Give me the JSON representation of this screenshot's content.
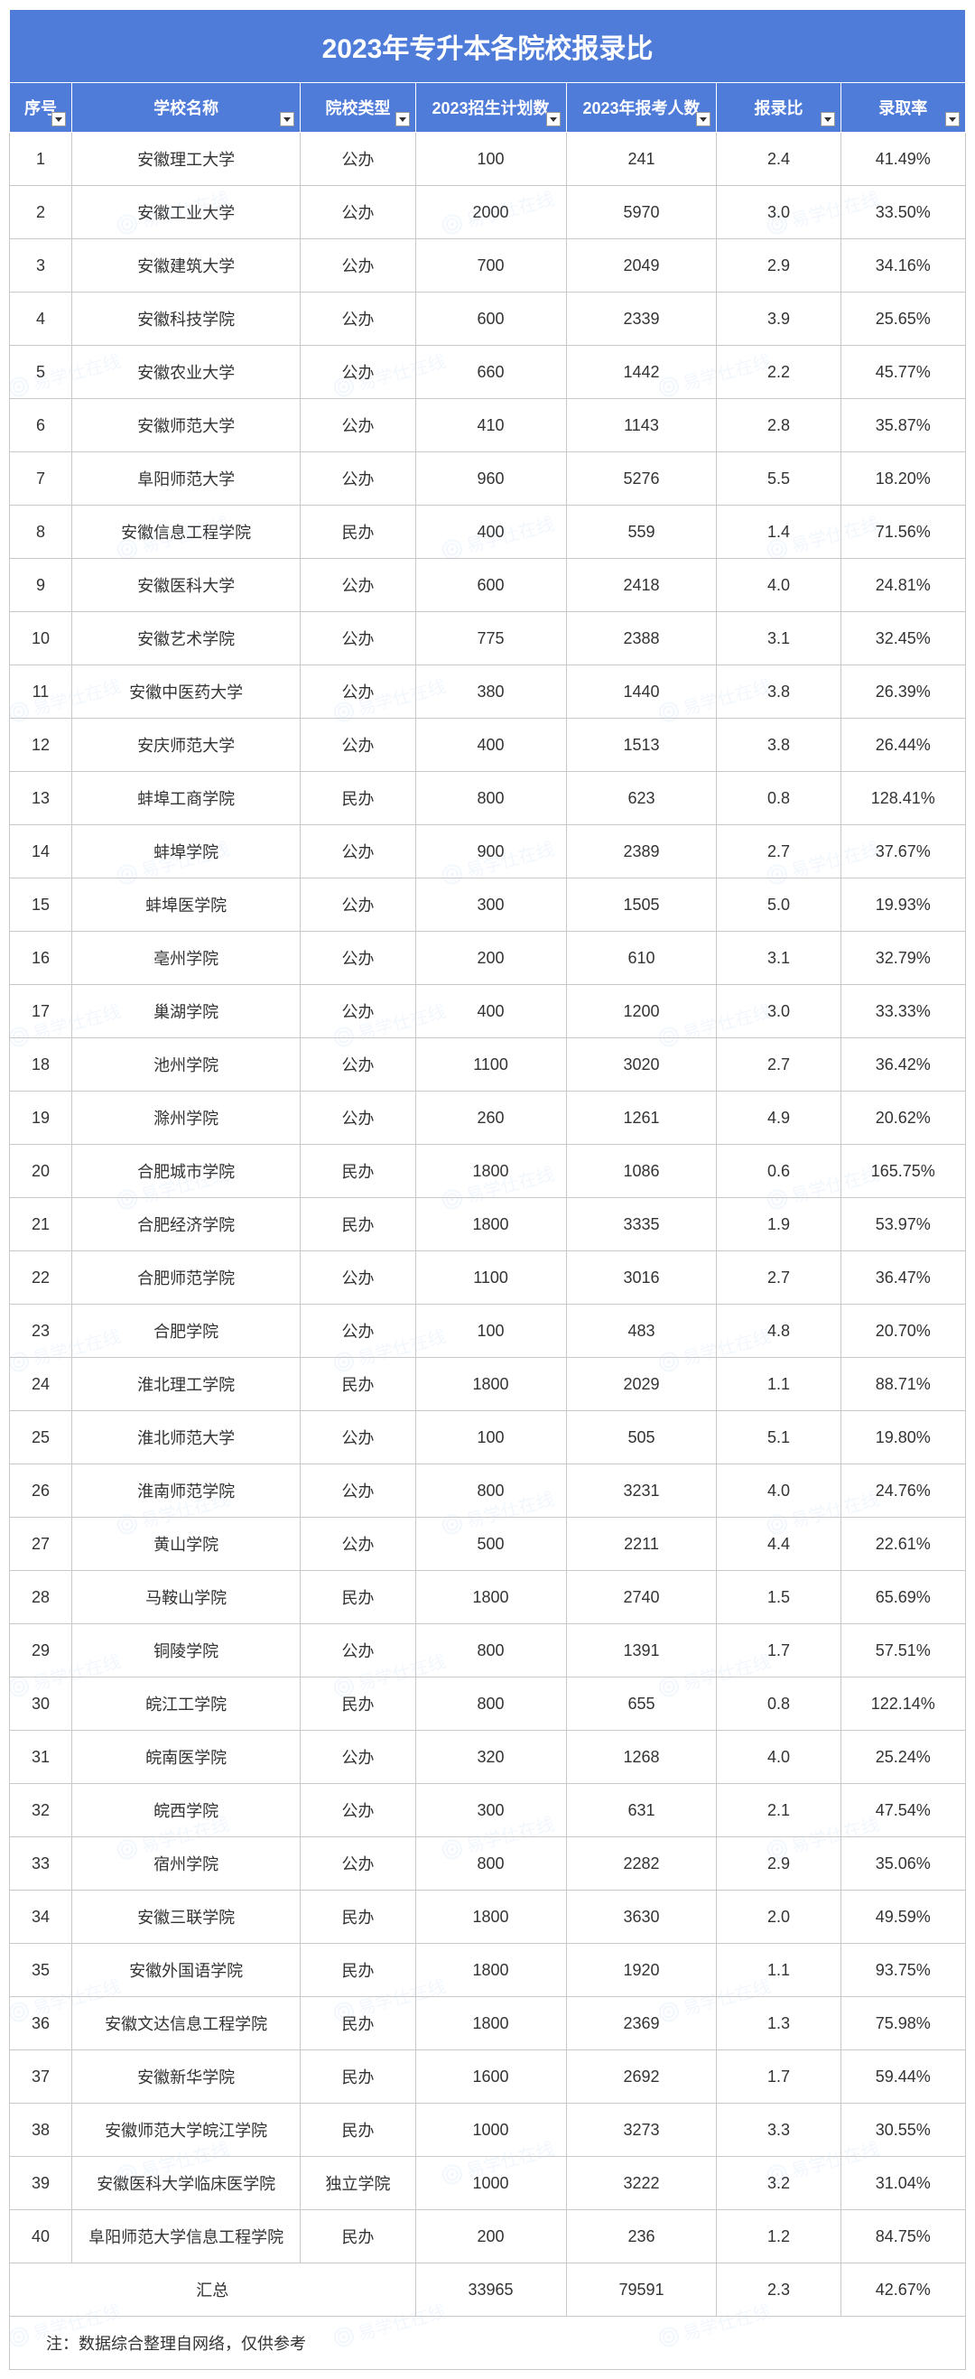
{
  "title": "2023年专升本各院校报录比",
  "columns": [
    "序号",
    "学校名称",
    "院校类型",
    "2023招生计划数",
    "2023年报考人数",
    "报录比",
    "录取率"
  ],
  "rows": [
    [
      "1",
      "安徽理工大学",
      "公办",
      "100",
      "241",
      "2.4",
      "41.49%"
    ],
    [
      "2",
      "安徽工业大学",
      "公办",
      "2000",
      "5970",
      "3.0",
      "33.50%"
    ],
    [
      "3",
      "安徽建筑大学",
      "公办",
      "700",
      "2049",
      "2.9",
      "34.16%"
    ],
    [
      "4",
      "安徽科技学院",
      "公办",
      "600",
      "2339",
      "3.9",
      "25.65%"
    ],
    [
      "5",
      "安徽农业大学",
      "公办",
      "660",
      "1442",
      "2.2",
      "45.77%"
    ],
    [
      "6",
      "安徽师范大学",
      "公办",
      "410",
      "1143",
      "2.8",
      "35.87%"
    ],
    [
      "7",
      "阜阳师范大学",
      "公办",
      "960",
      "5276",
      "5.5",
      "18.20%"
    ],
    [
      "8",
      "安徽信息工程学院",
      "民办",
      "400",
      "559",
      "1.4",
      "71.56%"
    ],
    [
      "9",
      "安徽医科大学",
      "公办",
      "600",
      "2418",
      "4.0",
      "24.81%"
    ],
    [
      "10",
      "安徽艺术学院",
      "公办",
      "775",
      "2388",
      "3.1",
      "32.45%"
    ],
    [
      "11",
      "安徽中医药大学",
      "公办",
      "380",
      "1440",
      "3.8",
      "26.39%"
    ],
    [
      "12",
      "安庆师范大学",
      "公办",
      "400",
      "1513",
      "3.8",
      "26.44%"
    ],
    [
      "13",
      "蚌埠工商学院",
      "民办",
      "800",
      "623",
      "0.8",
      "128.41%"
    ],
    [
      "14",
      "蚌埠学院",
      "公办",
      "900",
      "2389",
      "2.7",
      "37.67%"
    ],
    [
      "15",
      "蚌埠医学院",
      "公办",
      "300",
      "1505",
      "5.0",
      "19.93%"
    ],
    [
      "16",
      "亳州学院",
      "公办",
      "200",
      "610",
      "3.1",
      "32.79%"
    ],
    [
      "17",
      "巢湖学院",
      "公办",
      "400",
      "1200",
      "3.0",
      "33.33%"
    ],
    [
      "18",
      "池州学院",
      "公办",
      "1100",
      "3020",
      "2.7",
      "36.42%"
    ],
    [
      "19",
      "滁州学院",
      "公办",
      "260",
      "1261",
      "4.9",
      "20.62%"
    ],
    [
      "20",
      "合肥城市学院",
      "民办",
      "1800",
      "1086",
      "0.6",
      "165.75%"
    ],
    [
      "21",
      "合肥经济学院",
      "民办",
      "1800",
      "3335",
      "1.9",
      "53.97%"
    ],
    [
      "22",
      "合肥师范学院",
      "公办",
      "1100",
      "3016",
      "2.7",
      "36.47%"
    ],
    [
      "23",
      "合肥学院",
      "公办",
      "100",
      "483",
      "4.8",
      "20.70%"
    ],
    [
      "24",
      "淮北理工学院",
      "民办",
      "1800",
      "2029",
      "1.1",
      "88.71%"
    ],
    [
      "25",
      "淮北师范大学",
      "公办",
      "100",
      "505",
      "5.1",
      "19.80%"
    ],
    [
      "26",
      "淮南师范学院",
      "公办",
      "800",
      "3231",
      "4.0",
      "24.76%"
    ],
    [
      "27",
      "黄山学院",
      "公办",
      "500",
      "2211",
      "4.4",
      "22.61%"
    ],
    [
      "28",
      "马鞍山学院",
      "民办",
      "1800",
      "2740",
      "1.5",
      "65.69%"
    ],
    [
      "29",
      "铜陵学院",
      "公办",
      "800",
      "1391",
      "1.7",
      "57.51%"
    ],
    [
      "30",
      "皖江工学院",
      "民办",
      "800",
      "655",
      "0.8",
      "122.14%"
    ],
    [
      "31",
      "皖南医学院",
      "公办",
      "320",
      "1268",
      "4.0",
      "25.24%"
    ],
    [
      "32",
      "皖西学院",
      "公办",
      "300",
      "631",
      "2.1",
      "47.54%"
    ],
    [
      "33",
      "宿州学院",
      "公办",
      "800",
      "2282",
      "2.9",
      "35.06%"
    ],
    [
      "34",
      "安徽三联学院",
      "民办",
      "1800",
      "3630",
      "2.0",
      "49.59%"
    ],
    [
      "35",
      "安徽外国语学院",
      "民办",
      "1800",
      "1920",
      "1.1",
      "93.75%"
    ],
    [
      "36",
      "安徽文达信息工程学院",
      "民办",
      "1800",
      "2369",
      "1.3",
      "75.98%"
    ],
    [
      "37",
      "安徽新华学院",
      "民办",
      "1600",
      "2692",
      "1.7",
      "59.44%"
    ],
    [
      "38",
      "安徽师范大学皖江学院",
      "民办",
      "1000",
      "3273",
      "3.3",
      "30.55%"
    ],
    [
      "39",
      "安徽医科大学临床医学院",
      "独立学院",
      "1000",
      "3222",
      "3.2",
      "31.04%"
    ],
    [
      "40",
      "阜阳师范大学信息工程学院",
      "民办",
      "200",
      "236",
      "1.2",
      "84.75%"
    ]
  ],
  "summary": {
    "label": "汇总",
    "plan": "33965",
    "apply": "79591",
    "ratio": "2.3",
    "rate": "42.67%"
  },
  "footnote": "注：数据综合整理自网络，仅供参考",
  "watermark_text": "易学仕在线",
  "colors": {
    "header_bg": "#4f7bd9",
    "header_text": "#ffffff",
    "border": "#c8c8c8",
    "cell_text": "#333333",
    "watermark": "#4a90e2"
  }
}
